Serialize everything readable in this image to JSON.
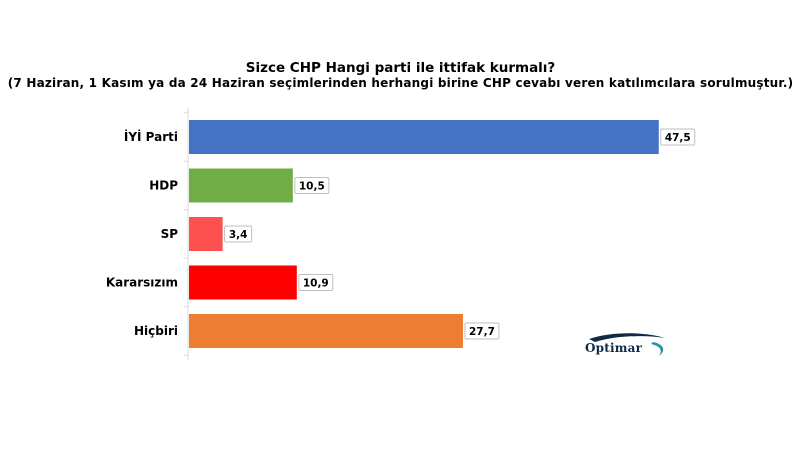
{
  "chart_data": {
    "type": "bar",
    "orientation": "horizontal",
    "title": "Sizce CHP Hangi parti ile ittifak kurmalı?",
    "subtitle": "(7 Haziran, 1 Kasım  ya da 24 Haziran seçimlerinden herhangi birine CHP cevabı veren katılımcılara sorulmuştur.)",
    "categories": [
      "İYİ Parti",
      "HDP",
      "SP",
      "Kararsızım",
      "Hiçbiri"
    ],
    "values": [
      47.5,
      10.5,
      3.4,
      10.9,
      27.7
    ],
    "value_labels": [
      "47,5",
      "10,5",
      "3,4",
      "10,9",
      "27,7"
    ],
    "colors": [
      "#4472C4",
      "#70AD47",
      "#FF5050",
      "#FF0000",
      "#ED7D31"
    ],
    "xlim": [
      0,
      50
    ],
    "grid": false,
    "legend": "none"
  },
  "logo": {
    "text": "Optimar"
  }
}
